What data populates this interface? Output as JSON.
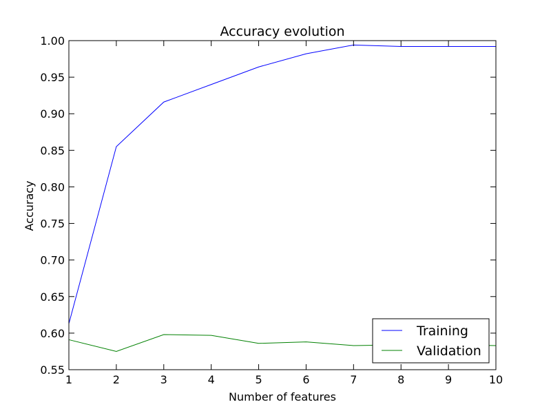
{
  "chart_data": {
    "type": "line",
    "title": "Accuracy evolution",
    "xlabel": "Number of features",
    "ylabel": "Accuracy",
    "xlim": [
      1,
      10
    ],
    "ylim": [
      0.55,
      1.0
    ],
    "xticks": [
      "1",
      "2",
      "3",
      "4",
      "5",
      "6",
      "7",
      "8",
      "9",
      "10"
    ],
    "yticks": [
      "0.55",
      "0.60",
      "0.65",
      "0.70",
      "0.75",
      "0.80",
      "0.85",
      "0.90",
      "0.95",
      "1.00"
    ],
    "grid": false,
    "legend_position": "lower-right",
    "x": [
      1,
      2,
      3,
      4,
      5,
      6,
      7,
      8,
      9,
      10
    ],
    "series": [
      {
        "name": "Training",
        "color": "#0000ff",
        "values": [
          0.613,
          0.855,
          0.916,
          0.94,
          0.964,
          0.982,
          0.994,
          0.992,
          0.992,
          0.992
        ]
      },
      {
        "name": "Validation",
        "color": "#008000",
        "values": [
          0.591,
          0.575,
          0.598,
          0.597,
          0.586,
          0.588,
          0.583,
          0.584,
          0.584,
          0.583
        ]
      }
    ]
  }
}
